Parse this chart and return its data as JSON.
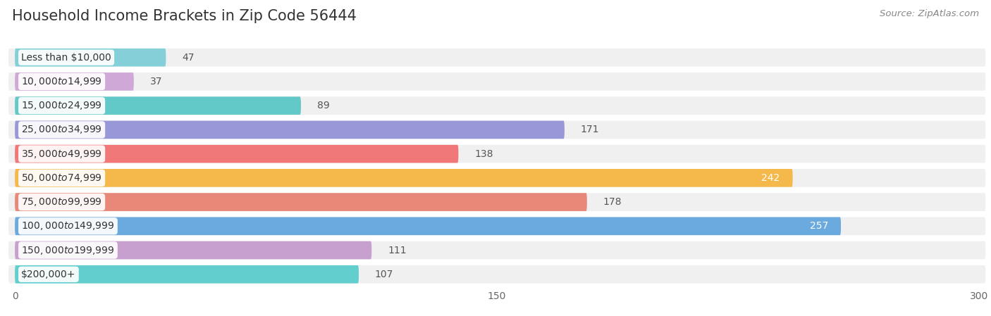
{
  "title": "Household Income Brackets in Zip Code 56444",
  "source": "Source: ZipAtlas.com",
  "categories": [
    "Less than $10,000",
    "$10,000 to $14,999",
    "$15,000 to $24,999",
    "$25,000 to $34,999",
    "$35,000 to $49,999",
    "$50,000 to $74,999",
    "$75,000 to $99,999",
    "$100,000 to $149,999",
    "$150,000 to $199,999",
    "$200,000+"
  ],
  "values": [
    47,
    37,
    89,
    171,
    138,
    242,
    178,
    257,
    111,
    107
  ],
  "bar_colors": [
    "#85cfd8",
    "#d0a8d8",
    "#62c8c8",
    "#9898d8",
    "#f07878",
    "#f5b84a",
    "#e88878",
    "#6aaade",
    "#c8a0d0",
    "#62cece"
  ],
  "bg_color": "#ffffff",
  "row_bg_color": "#f0f0f0",
  "bar_bg_color": "#e8e8e8",
  "xlim": [
    0,
    300
  ],
  "xticks": [
    0,
    150,
    300
  ],
  "title_fontsize": 15,
  "label_fontsize": 10,
  "value_fontsize": 10,
  "source_fontsize": 9.5,
  "value_inside_threshold": 200
}
